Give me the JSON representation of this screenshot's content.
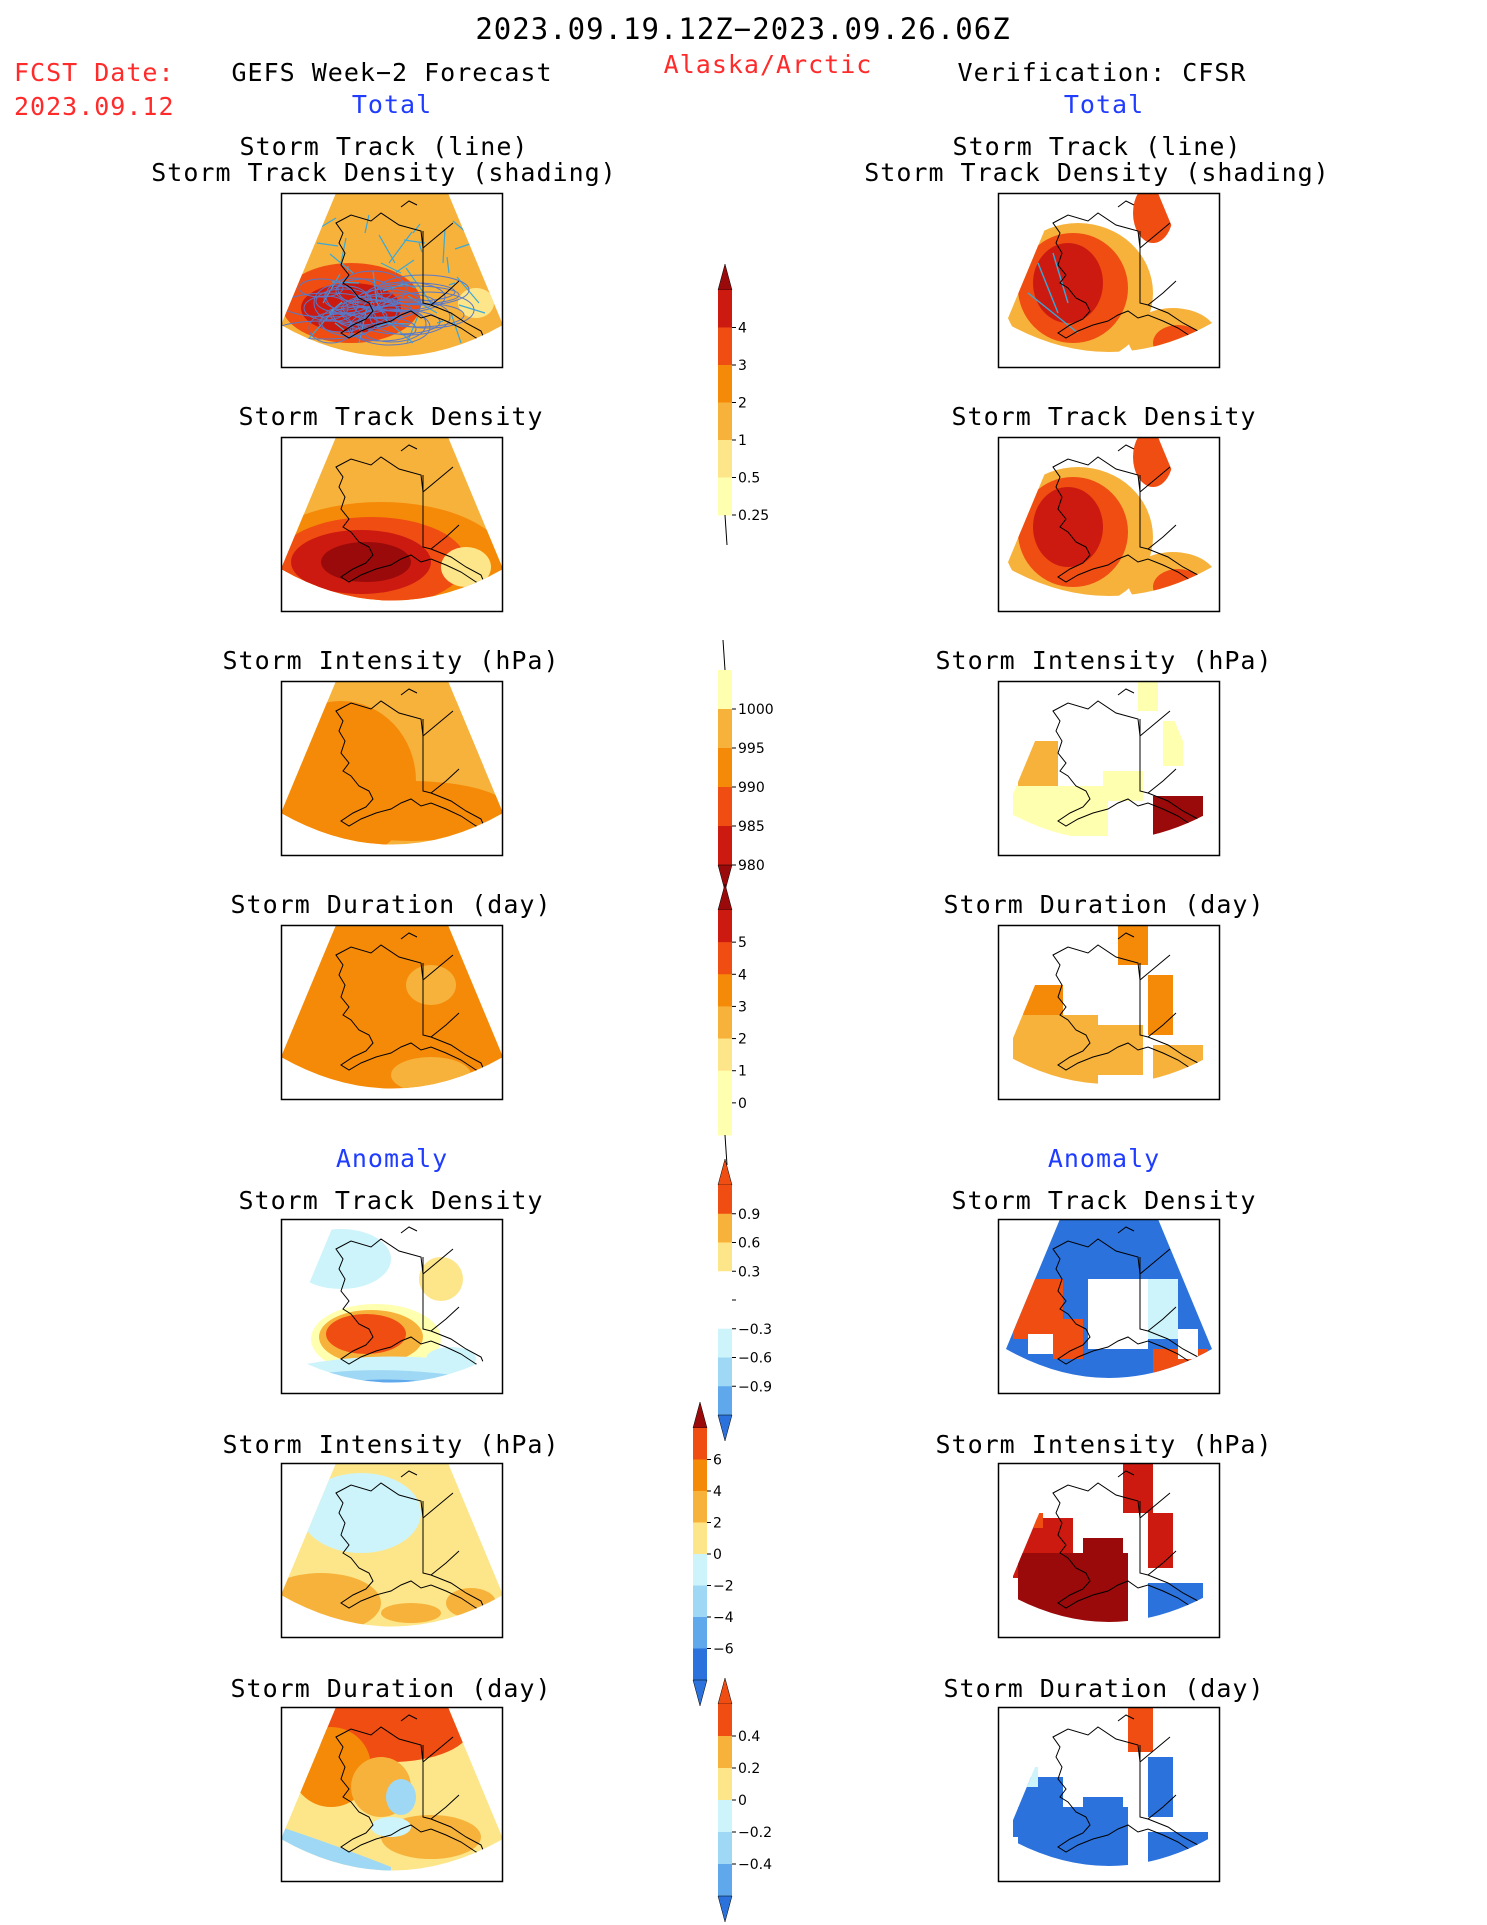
{
  "header": {
    "period": "2023.09.19.12Z−2023.09.26.06Z",
    "region": "Alaska/Arctic",
    "fcst_label": "FCST Date:",
    "fcst_date": "2023.09.12",
    "left_title": "GEFS Week−2 Forecast",
    "right_title": "Verification: CFSR",
    "total": "Total",
    "anomaly": "Anomaly"
  },
  "panel_titles": {
    "track_line": "Storm Track (line)",
    "track_shading": "Storm Track Density (shading)",
    "density": "Storm Track Density",
    "intensity": "Storm Intensity (hPa)",
    "duration": "Storm Duration (day)"
  },
  "colors": {
    "red_label": "#ff2a2a",
    "blue_label": "#1f3cff",
    "pos_scale": [
      "#ffffb0",
      "#fde68a",
      "#f7b23b",
      "#f58a08",
      "#f04d12",
      "#cc1a10",
      "#9a0a0a"
    ],
    "neg_scale": [
      "#cdf4fb",
      "#9fd8f5",
      "#5fa8ec",
      "#2b72dd",
      "#1654c8"
    ]
  },
  "chart_data": [
    {
      "type": "heatmap",
      "panel": "GEFS Total Storm Track (line) / Storm Track Density (shading)",
      "colorbar": {
        "ticks": [
          "4",
          "3",
          "2",
          "1",
          "0.5",
          "0.25"
        ]
      }
    },
    {
      "type": "heatmap",
      "panel": "GEFS Total Storm Track Density",
      "colorbar": {
        "ticks": [
          "4",
          "3",
          "2",
          "1",
          "0.5",
          "0.25"
        ]
      }
    },
    {
      "type": "heatmap",
      "panel": "GEFS Total Storm Intensity (hPa)",
      "colorbar": {
        "ticks": [
          "1000",
          "995",
          "990",
          "985",
          "980"
        ]
      }
    },
    {
      "type": "heatmap",
      "panel": "GEFS Total Storm Duration (day)",
      "colorbar": {
        "ticks": [
          "5",
          "4",
          "3",
          "2",
          "1",
          "0"
        ]
      }
    },
    {
      "type": "heatmap",
      "panel": "GEFS Anomaly Storm Track Density",
      "colorbar": {
        "ticks": [
          "0.9",
          "0.6",
          "0.3",
          "−0.3",
          "−0.6",
          "−0.9"
        ]
      }
    },
    {
      "type": "heatmap",
      "panel": "GEFS Anomaly Storm Intensity (hPa)",
      "colorbar": {
        "ticks": [
          "6",
          "4",
          "2",
          "0",
          "−2",
          "−4",
          "−6"
        ]
      }
    },
    {
      "type": "heatmap",
      "panel": "GEFS Anomaly Storm Duration (day)",
      "colorbar": {
        "ticks": [
          "0.4",
          "0.2",
          "0",
          "−0.2",
          "−0.4"
        ]
      }
    }
  ]
}
